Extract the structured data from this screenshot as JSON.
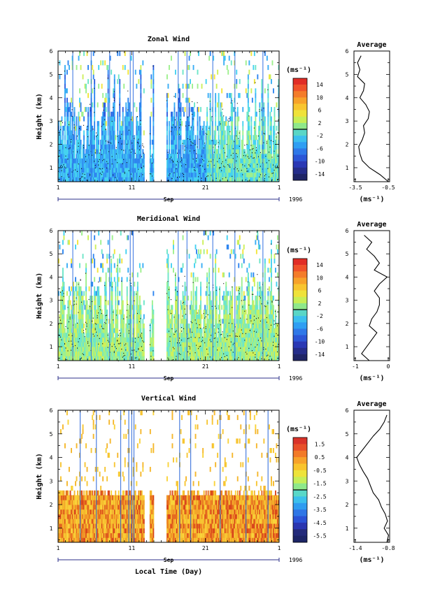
{
  "chart_data": [
    {
      "type": "heatmap",
      "title": "Zonal Wind",
      "ylabel": "Height (km)",
      "xlabel": "",
      "x_tick_labels": [
        "1",
        "11",
        "21",
        "1"
      ],
      "month_label": "Sep",
      "year_label": "1996",
      "xlim_days": [
        1,
        31
      ],
      "ylim": [
        0.4,
        6
      ],
      "y_ticks": [
        1,
        2,
        3,
        4,
        5,
        6
      ],
      "colorbar": {
        "unit_label": "(ms⁻¹)",
        "tick_labels": [
          "14",
          "10",
          "6",
          "2",
          "-2",
          "-6",
          "-10",
          "-14"
        ],
        "range": [
          -16,
          16
        ]
      },
      "profile": {
        "title": "Average",
        "xlabel": "(ms⁻¹)",
        "x_tick_labels": [
          "-3.5",
          "-0.5"
        ],
        "xlim": [
          -3.5,
          -0.5
        ],
        "height": [
          0.4,
          0.7,
          1.0,
          1.3,
          1.6,
          1.9,
          2.2,
          2.5,
          2.8,
          3.1,
          3.4,
          3.7,
          4.0,
          4.3,
          4.6,
          4.9,
          5.2,
          5.5,
          5.8
        ],
        "values": [
          -0.6,
          -1.3,
          -2.2,
          -2.8,
          -3.0,
          -3.1,
          -2.8,
          -2.6,
          -2.7,
          -2.3,
          -2.2,
          -2.5,
          -3.0,
          -2.7,
          -2.6,
          -3.2,
          -3.0,
          -3.2,
          -2.9
        ]
      }
    },
    {
      "type": "heatmap",
      "title": "Meridional Wind",
      "ylabel": "Height (km)",
      "xlabel": "",
      "x_tick_labels": [
        "1",
        "11",
        "21",
        "1"
      ],
      "month_label": "Sep",
      "year_label": "1996",
      "xlim_days": [
        1,
        31
      ],
      "ylim": [
        0.4,
        6
      ],
      "y_ticks": [
        1,
        2,
        3,
        4,
        5,
        6
      ],
      "colorbar": {
        "unit_label": "(ms⁻¹)",
        "tick_labels": [
          "14",
          "10",
          "6",
          "2",
          "-2",
          "-6",
          "-10",
          "-14"
        ],
        "range": [
          -16,
          16
        ]
      },
      "profile": {
        "title": "Average",
        "xlabel": "(ms⁻¹)",
        "x_tick_labels": [
          "-1",
          "0"
        ],
        "xlim": [
          -1.2,
          0.2
        ],
        "height": [
          0.4,
          0.7,
          1.0,
          1.3,
          1.6,
          1.9,
          2.2,
          2.5,
          2.8,
          3.1,
          3.4,
          3.7,
          4.0,
          4.3,
          4.6,
          4.9,
          5.2,
          5.5,
          5.8
        ],
        "values": [
          -0.6,
          -0.9,
          -0.7,
          -0.5,
          -0.3,
          -0.6,
          -0.5,
          -0.3,
          -0.2,
          -0.2,
          -0.4,
          -0.2,
          0.1,
          -0.4,
          -0.2,
          -0.4,
          -0.7,
          -0.5,
          -0.8
        ]
      }
    },
    {
      "type": "heatmap",
      "title": "Vertical Wind",
      "ylabel": "Height (km)",
      "xlabel": "Local Time (Day)",
      "x_tick_labels": [
        "1",
        "11",
        "21",
        "1"
      ],
      "month_label": "Sep",
      "year_label": "1996",
      "xlim_days": [
        1,
        31
      ],
      "ylim": [
        0.4,
        6
      ],
      "y_ticks": [
        1,
        2,
        3,
        4,
        5,
        6
      ],
      "colorbar": {
        "unit_label": "(ms⁻¹)",
        "tick_labels": [
          "1.5",
          "0.5",
          "-0.5",
          "-1.5",
          "-2.5",
          "-3.5",
          "-4.5",
          "-5.5"
        ],
        "range": [
          -6,
          2
        ]
      },
      "profile": {
        "title": "Average",
        "xlabel": "(ms⁻¹)",
        "x_tick_labels": [
          "-1.4",
          "-0.8"
        ],
        "xlim": [
          -1.45,
          -0.8
        ],
        "height": [
          0.4,
          0.7,
          1.0,
          1.3,
          1.6,
          1.9,
          2.2,
          2.5,
          2.8,
          3.1,
          3.4,
          3.7,
          4.0,
          4.3,
          4.6,
          4.9,
          5.2,
          5.5,
          5.8
        ],
        "values": [
          -0.85,
          -0.82,
          -0.9,
          -0.84,
          -0.88,
          -0.95,
          -1.0,
          -1.1,
          -1.15,
          -1.2,
          -1.28,
          -1.35,
          -1.4,
          -1.3,
          -1.2,
          -1.1,
          -0.98,
          -0.9,
          -0.85
        ]
      }
    }
  ]
}
